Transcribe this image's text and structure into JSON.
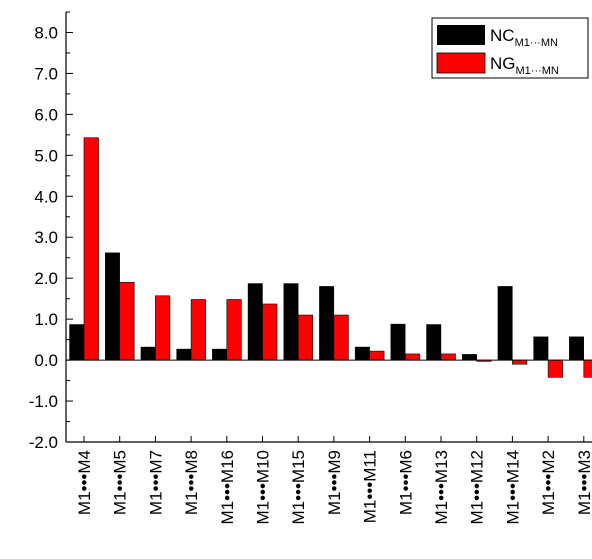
{
  "chart_data": {
    "type": "bar",
    "categories": [
      "M1•••M4",
      "M1•••M5",
      "M1•••M7",
      "M1•••M8",
      "M1•••M16",
      "M1•••M10",
      "M1•••M15",
      "M1•••M9",
      "M1•••M11",
      "M1•••M6",
      "M1•••M13",
      "M1•••M12",
      "M1•••M14",
      "M1•••M2",
      "M1•••M3"
    ],
    "series": [
      {
        "name": "NC",
        "name_sub": "M1···MN",
        "color": "#000000",
        "values": [
          0.87,
          2.62,
          0.32,
          0.27,
          0.27,
          1.87,
          1.87,
          1.8,
          0.32,
          0.88,
          0.87,
          0.14,
          1.8,
          0.57,
          0.57
        ]
      },
      {
        "name": "NG",
        "name_sub": "M1···MN",
        "color": "#ff0000",
        "values": [
          5.43,
          1.9,
          1.57,
          1.48,
          1.48,
          1.37,
          1.1,
          1.1,
          0.22,
          0.15,
          0.15,
          -0.03,
          -0.1,
          -0.42,
          -0.42
        ]
      }
    ],
    "y_ticks": [
      "-2.0",
      "-1.0",
      "0.0",
      "1.0",
      "2.0",
      "3.0",
      "4.0",
      "5.0",
      "6.0",
      "7.0",
      "8.0"
    ],
    "ylim": [
      -2.0,
      8.5
    ],
    "title": "",
    "xlabel": "",
    "ylabel": "",
    "legend_position": "top-right",
    "grid": false
  }
}
